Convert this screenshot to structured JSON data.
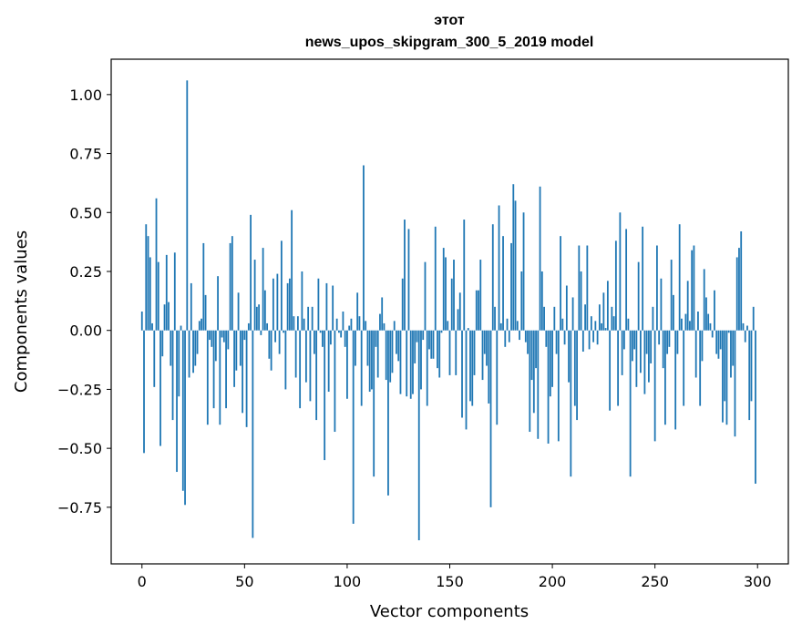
{
  "chart_data": {
    "type": "bar",
    "title_lines": [
      "этот",
      "news_upos_skipgram_300_5_2019 model"
    ],
    "xlabel": "Vector components",
    "ylabel": "Components values",
    "xlim": [
      -15,
      315
    ],
    "ylim": [
      -0.99,
      1.15
    ],
    "xticks": [
      0,
      50,
      100,
      150,
      200,
      250,
      300
    ],
    "yticks": [
      -0.75,
      -0.5,
      -0.25,
      0.0,
      0.25,
      0.5,
      0.75,
      1.0
    ],
    "ytick_labels": [
      "−0.75",
      "−0.50",
      "−0.25",
      "0.00",
      "0.25",
      "0.50",
      "0.75",
      "1.00"
    ],
    "grid": false,
    "bar_color": "#1f77b4",
    "values": [
      0.08,
      -0.52,
      0.45,
      0.4,
      0.31,
      0.03,
      -0.24,
      0.56,
      0.29,
      -0.49,
      -0.11,
      0.11,
      0.32,
      0.12,
      -0.15,
      -0.38,
      0.33,
      -0.6,
      -0.28,
      0.02,
      -0.68,
      -0.74,
      1.06,
      -0.2,
      0.2,
      -0.18,
      -0.15,
      -0.1,
      0.04,
      0.05,
      0.37,
      0.15,
      -0.4,
      -0.04,
      -0.07,
      -0.33,
      -0.13,
      0.23,
      -0.4,
      -0.03,
      -0.05,
      -0.33,
      -0.08,
      0.37,
      0.4,
      -0.24,
      -0.17,
      0.16,
      -0.15,
      -0.35,
      -0.04,
      -0.41,
      0.03,
      0.49,
      -0.88,
      0.3,
      0.1,
      0.11,
      -0.02,
      0.35,
      0.17,
      0.03,
      -0.12,
      -0.17,
      0.22,
      -0.05,
      0.24,
      -0.1,
      0.38,
      -0.01,
      -0.25,
      0.2,
      0.22,
      0.51,
      0.06,
      -0.2,
      0.06,
      -0.33,
      0.25,
      0.05,
      -0.22,
      0.1,
      -0.3,
      0.1,
      -0.1,
      -0.38,
      0.22,
      -0.01,
      -0.07,
      -0.55,
      0.2,
      -0.26,
      -0.06,
      0.19,
      -0.43,
      0.05,
      -0.01,
      -0.03,
      0.08,
      -0.07,
      -0.29,
      0.02,
      0.05,
      -0.82,
      -0.15,
      0.16,
      0.06,
      -0.32,
      0.7,
      0.04,
      -0.15,
      -0.26,
      -0.25,
      -0.62,
      -0.07,
      -0.2,
      0.07,
      0.14,
      0.03,
      -0.21,
      -0.7,
      -0.22,
      -0.18,
      0.04,
      -0.1,
      -0.13,
      -0.27,
      0.22,
      0.47,
      -0.28,
      0.43,
      -0.29,
      -0.27,
      -0.14,
      -0.05,
      -0.89,
      -0.25,
      -0.04,
      0.29,
      -0.32,
      -0.08,
      -0.12,
      -0.12,
      0.44,
      -0.16,
      -0.2,
      -0.01,
      0.35,
      0.31,
      0.04,
      -0.19,
      0.22,
      0.3,
      -0.19,
      0.09,
      0.16,
      -0.37,
      0.47,
      -0.42,
      0.01,
      -0.3,
      -0.32,
      -0.19,
      0.17,
      0.17,
      0.3,
      -0.21,
      -0.1,
      -0.15,
      -0.31,
      -0.75,
      0.45,
      0.1,
      -0.4,
      0.53,
      0.03,
      0.4,
      -0.07,
      0.05,
      -0.05,
      0.37,
      0.62,
      0.55,
      0.04,
      -0.04,
      0.25,
      0.5,
      -0.05,
      -0.1,
      -0.43,
      -0.21,
      -0.35,
      -0.16,
      -0.46,
      0.61,
      0.25,
      0.1,
      -0.07,
      -0.48,
      -0.28,
      -0.24,
      0.1,
      -0.1,
      -0.47,
      0.4,
      0.05,
      -0.06,
      0.19,
      -0.22,
      -0.62,
      0.14,
      -0.32,
      -0.38,
      0.36,
      0.25,
      -0.09,
      0.11,
      0.36,
      -0.08,
      0.06,
      -0.05,
      0.04,
      -0.06,
      0.11,
      0.03,
      0.16,
      0.01,
      0.21,
      -0.34,
      0.1,
      0.06,
      0.38,
      -0.32,
      0.5,
      -0.19,
      -0.08,
      0.43,
      0.05,
      -0.62,
      -0.13,
      -0.08,
      -0.24,
      0.29,
      -0.18,
      0.44,
      -0.27,
      -0.1,
      -0.22,
      -0.14,
      0.1,
      -0.47,
      0.36,
      -0.06,
      0.22,
      -0.16,
      -0.4,
      -0.1,
      -0.07,
      0.3,
      0.15,
      -0.42,
      -0.1,
      0.45,
      0.05,
      -0.32,
      0.07,
      0.21,
      0.04,
      0.34,
      0.36,
      -0.2,
      0.08,
      -0.32,
      -0.13,
      0.26,
      0.14,
      0.07,
      0.03,
      -0.03,
      0.17,
      -0.1,
      -0.12,
      -0.08,
      -0.39,
      -0.3,
      -0.4,
      -0.01,
      -0.2,
      -0.15,
      -0.45,
      0.31,
      0.35,
      0.42,
      0.03,
      -0.05,
      0.02,
      -0.38,
      -0.3,
      0.1,
      -0.65
    ]
  }
}
